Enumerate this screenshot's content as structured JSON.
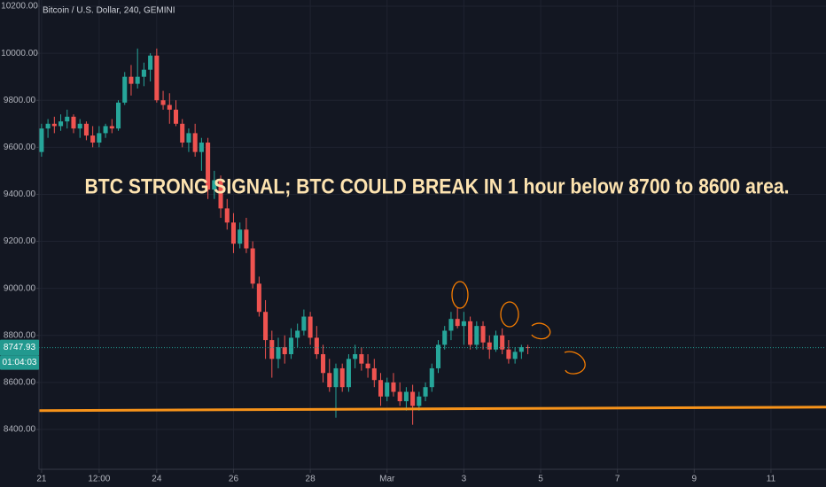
{
  "chart_data": {
    "type": "candlestick",
    "title": "Bitcoin / U.S. Dollar, 240, GEMINI",
    "annotation": "BTC STRONG SIGNAL; BTC COULD BREAK IN 1 hour below 8700 to 8600 area.",
    "countdown": "01:04:03",
    "up_color": "#26a69a",
    "down_color": "#ef5350",
    "last_price_color": "#22998f",
    "grid": true,
    "x": [
      0,
      4,
      8,
      12,
      16,
      20,
      24,
      28,
      32,
      36,
      40,
      44,
      48,
      52,
      56,
      60,
      64,
      68,
      72,
      76,
      80,
      84,
      88,
      92,
      96,
      100,
      104,
      108,
      112,
      116,
      120,
      124,
      128,
      132,
      136,
      140,
      144,
      148,
      152,
      156,
      160,
      164,
      168,
      172,
      176,
      180,
      184,
      188,
      192,
      196,
      200,
      204,
      208,
      212,
      216,
      220,
      224,
      228,
      232,
      236,
      240,
      244,
      248,
      252,
      256,
      260,
      264,
      268,
      272,
      276,
      280,
      284,
      288,
      292,
      296,
      300,
      304
    ],
    "open": [
      9580,
      9680,
      9700,
      9690,
      9710,
      9730,
      9680,
      9700,
      9650,
      9620,
      9660,
      9690,
      9680,
      9790,
      9900,
      9870,
      9900,
      9930,
      9990,
      9800,
      9780,
      9760,
      9700,
      9620,
      9660,
      9580,
      9620,
      9420,
      9460,
      9340,
      9280,
      9190,
      9250,
      9170,
      9020,
      8900,
      8780,
      8700,
      8750,
      8720,
      8790,
      8820,
      8880,
      8790,
      8720,
      8640,
      8580,
      8660,
      8580,
      8700,
      8720,
      8680,
      8660,
      8610,
      8540,
      8600,
      8560,
      8520,
      8560,
      8500,
      8540,
      8580,
      8660,
      8760,
      8820,
      8870,
      8840,
      8860,
      8760,
      8840,
      8770,
      8740,
      8800,
      8740,
      8700,
      8730,
      8750
    ],
    "high": [
      9700,
      9720,
      9730,
      9740,
      9760,
      9740,
      9720,
      9710,
      9690,
      9690,
      9700,
      9720,
      9800,
      9920,
      9950,
      10020,
      9960,
      10000,
      10020,
      9840,
      9830,
      9800,
      9720,
      9680,
      9700,
      9640,
      9640,
      9500,
      9480,
      9380,
      9320,
      9280,
      9300,
      9200,
      9050,
      8950,
      8820,
      8790,
      8800,
      8830,
      8850,
      8910,
      8900,
      8840,
      8760,
      8700,
      8680,
      8680,
      8720,
      8760,
      8750,
      8720,
      8700,
      8640,
      8620,
      8640,
      8600,
      8580,
      8590,
      8560,
      8600,
      8680,
      8780,
      8840,
      8900,
      8920,
      8900,
      8880,
      8860,
      8860,
      8800,
      8820,
      8830,
      8780,
      8750,
      8760,
      8760
    ],
    "low": [
      9560,
      9640,
      9660,
      9670,
      9680,
      9660,
      9640,
      9630,
      9600,
      9600,
      9640,
      9660,
      9670,
      9780,
      9820,
      9850,
      9860,
      9880,
      9790,
      9760,
      9700,
      9690,
      9600,
      9580,
      9560,
      9500,
      9380,
      9380,
      9300,
      9250,
      9150,
      9170,
      9150,
      9000,
      8880,
      8700,
      8620,
      8660,
      8680,
      8700,
      8750,
      8800,
      8760,
      8700,
      8600,
      8560,
      8450,
      8560,
      8560,
      8660,
      8650,
      8620,
      8580,
      8500,
      8520,
      8540,
      8500,
      8480,
      8420,
      8480,
      8520,
      8560,
      8640,
      8740,
      8780,
      8830,
      8760,
      8740,
      8740,
      8740,
      8700,
      8730,
      8720,
      8680,
      8680,
      8700,
      8720
    ],
    "close": [
      9680,
      9700,
      9690,
      9710,
      9730,
      9680,
      9700,
      9650,
      9620,
      9660,
      9690,
      9680,
      9790,
      9900,
      9870,
      9900,
      9930,
      9990,
      9800,
      9780,
      9760,
      9700,
      9620,
      9660,
      9580,
      9620,
      9420,
      9460,
      9340,
      9280,
      9190,
      9250,
      9170,
      9020,
      8900,
      8780,
      8700,
      8750,
      8720,
      8790,
      8820,
      8880,
      8790,
      8720,
      8640,
      8580,
      8660,
      8580,
      8700,
      8720,
      8680,
      8660,
      8610,
      8540,
      8600,
      8560,
      8520,
      8560,
      8500,
      8540,
      8580,
      8660,
      8760,
      8820,
      8870,
      8840,
      8860,
      8760,
      8840,
      8770,
      8740,
      8800,
      8740,
      8700,
      8730,
      8750,
      8747.93
    ],
    "xlim": [
      -1.6,
      490.4
    ],
    "xticks": [
      {
        "value": 0,
        "label": "21"
      },
      {
        "value": 36,
        "label": "12:00"
      },
      {
        "value": 72,
        "label": "24"
      },
      {
        "value": 120,
        "label": "26"
      },
      {
        "value": 168,
        "label": "28"
      },
      {
        "value": 216,
        "label": "Mar"
      },
      {
        "value": 264,
        "label": "3"
      },
      {
        "value": 312,
        "label": "5"
      },
      {
        "value": 360,
        "label": "7"
      },
      {
        "value": 408,
        "label": "9"
      },
      {
        "value": 456,
        "label": "11"
      }
    ],
    "ylim": [
      8230.5,
      10226.4
    ],
    "yticks": [
      {
        "value": 8400,
        "label": "8400.00"
      },
      {
        "value": 8600,
        "label": "8600.00"
      },
      {
        "value": 8800,
        "label": "8800.00"
      },
      {
        "value": 9000,
        "label": "9000.00"
      },
      {
        "value": 9200,
        "label": "9200.00"
      },
      {
        "value": 9400,
        "label": "9400.00"
      },
      {
        "value": 9600,
        "label": "9600.00"
      },
      {
        "value": 9800,
        "label": "9800.00"
      },
      {
        "value": 10000,
        "label": "10000.00"
      },
      {
        "value": 10200,
        "label": "10200.00"
      }
    ],
    "support_line": {
      "values": [
        8480,
        8495
      ],
      "color": "#f7931a"
    }
  }
}
